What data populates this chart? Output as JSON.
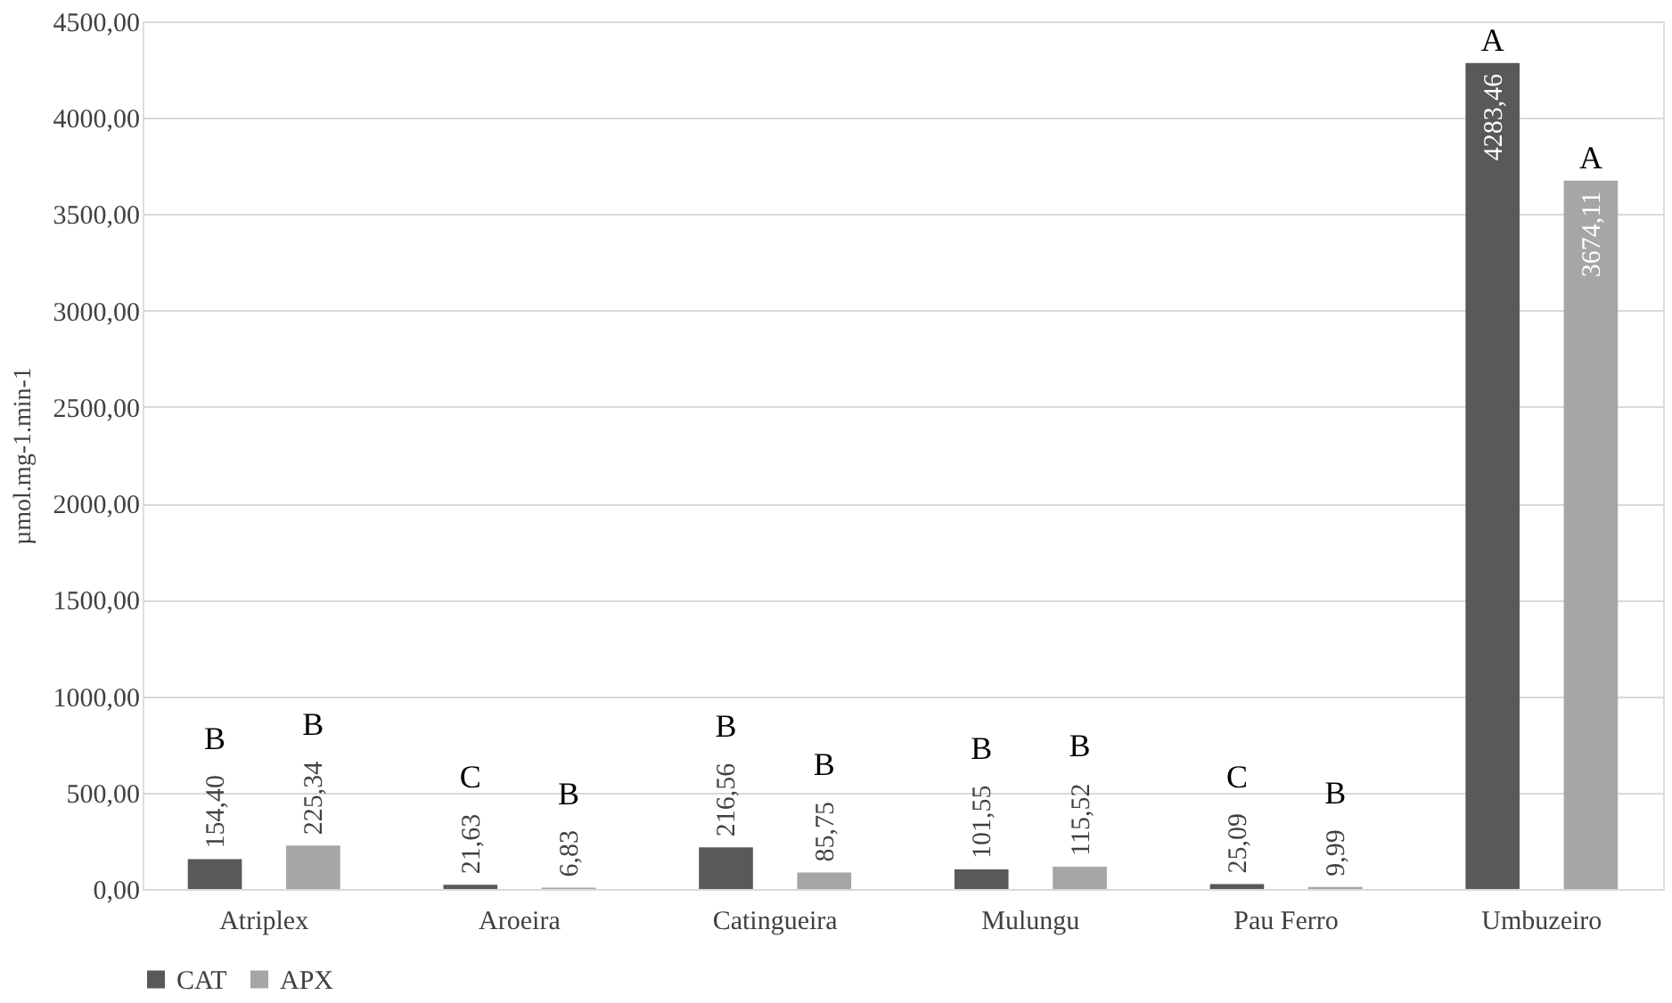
{
  "chart_data": {
    "type": "bar",
    "ylabel": "µmol.mg-1.min-1",
    "categories": [
      "Atriplex",
      "Aroeira",
      "Catingueira",
      "Mulungu",
      "Pau Ferro",
      "Umbuzeiro"
    ],
    "series": [
      {
        "name": "CAT",
        "color": "#595959",
        "values": [
          154.4,
          21.63,
          216.56,
          101.55,
          25.09,
          4283.46
        ],
        "value_labels": [
          "154,40",
          "21,63",
          "216,56",
          "101,55",
          "25,09",
          "4283,46"
        ]
      },
      {
        "name": "APX",
        "color": "#a6a6a6",
        "values": [
          225.34,
          6.83,
          85.75,
          115.52,
          9.99,
          3674.11
        ],
        "value_labels": [
          "225,34",
          "6,83",
          "85,75",
          "115,52",
          "9,99",
          "3674,11"
        ]
      }
    ],
    "ylim": [
      0,
      4500
    ],
    "yticks": [
      {
        "value": 0,
        "label": "0,00"
      },
      {
        "value": 500,
        "label": "500,00"
      },
      {
        "value": 1000,
        "label": "1000,00"
      },
      {
        "value": 1500,
        "label": "1500,00"
      },
      {
        "value": 2000,
        "label": "2000,00"
      },
      {
        "value": 2500,
        "label": "2500,00"
      },
      {
        "value": 3000,
        "label": "3000,00"
      },
      {
        "value": 3500,
        "label": "3500,00"
      },
      {
        "value": 4000,
        "label": "4000,00"
      },
      {
        "value": 4500,
        "label": "4500,00"
      }
    ],
    "annotations": [
      "B",
      "B",
      "C",
      "B",
      "B",
      "B",
      "B",
      "B",
      "C",
      "B",
      "A",
      "A"
    ],
    "grid": "y",
    "legend": "bottom"
  }
}
